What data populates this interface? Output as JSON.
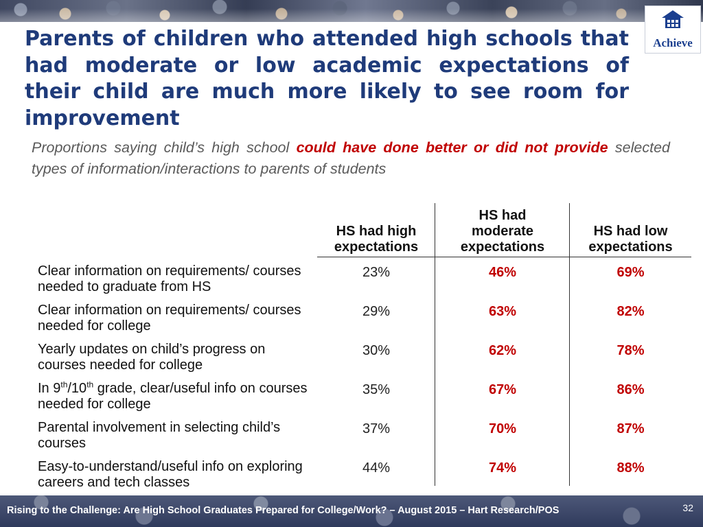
{
  "title": "Parents of children who attended high schools that had moderate or low academic expectations of their child are much more likely to see room for improvement",
  "logo": {
    "text": "Achieve"
  },
  "subtitle": {
    "pre": "Proportions saying child’s high school ",
    "highlight": "could have done better or did not provide",
    "post": " selected types of information/interactions to parents of students"
  },
  "table": {
    "headers": {
      "high": "HS had high expectations",
      "moderate": "HS had moderate expectations",
      "low": "HS had low expectations"
    },
    "rows": [
      {
        "label": "Clear information on requirements/ courses needed to graduate from HS",
        "high": "23%",
        "moderate": "46%",
        "low": "69%"
      },
      {
        "label": "Clear information on requirements/ courses needed for college",
        "high": "29%",
        "moderate": "63%",
        "low": "82%"
      },
      {
        "label": "Yearly updates on child’s progress on courses needed for college",
        "high": "30%",
        "moderate": "62%",
        "low": "78%"
      },
      {
        "label_parts": {
          "a": "In 9",
          "sup1": "th",
          "b": "/10",
          "sup2": "th",
          "c": " grade, clear/useful info on courses needed for college"
        },
        "high": "35%",
        "moderate": "67%",
        "low": "86%"
      },
      {
        "label": "Parental involvement in selecting child’s courses",
        "high": "37%",
        "moderate": "70%",
        "low": "87%"
      },
      {
        "label": "Easy-to-understand/useful info on exploring careers and tech classes",
        "high": "44%",
        "moderate": "74%",
        "low": "88%"
      }
    ]
  },
  "footer": {
    "text": "Rising to the Challenge:  Are High School Graduates Prepared for College/Work? – August 2015 – Hart Research/POS",
    "page": "32"
  },
  "colors": {
    "title": "#1f3b7a",
    "highlight": "#c00000",
    "footer_bg": "#2f3a5c"
  }
}
